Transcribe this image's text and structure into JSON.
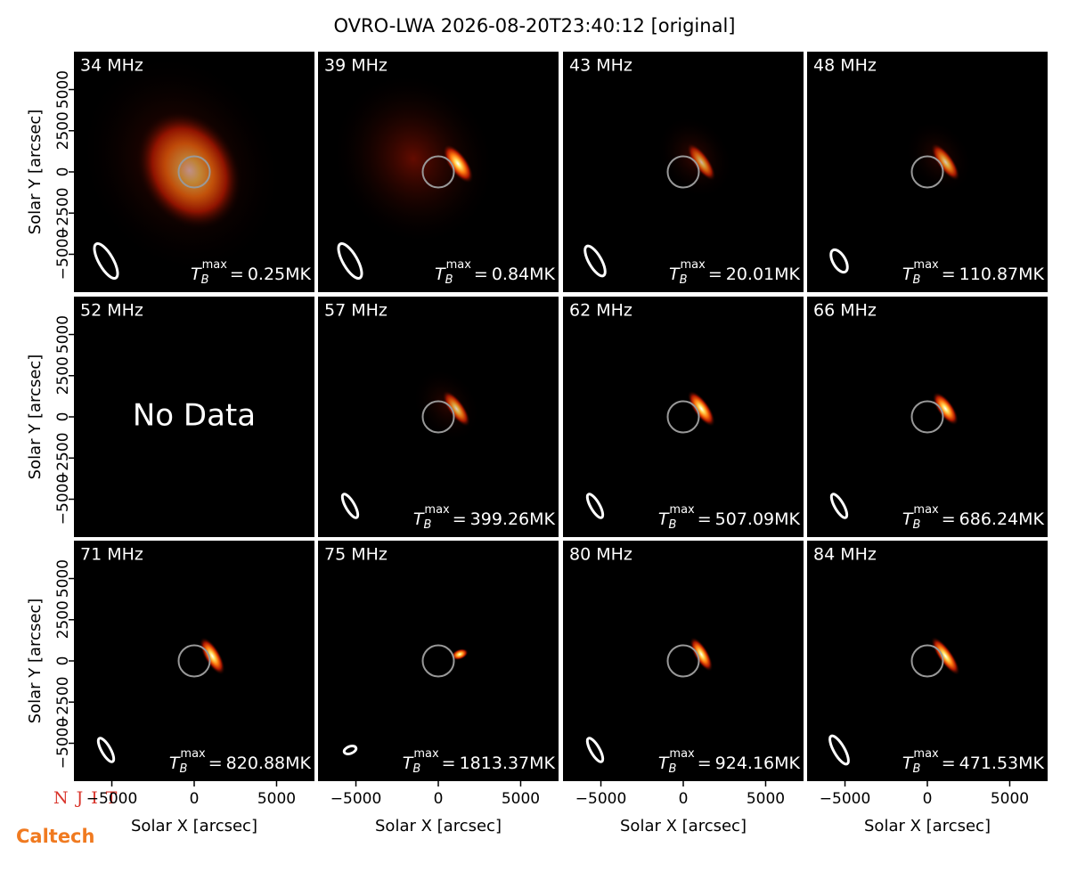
{
  "chart_data": {
    "type": "image",
    "title": "OVRO-LWA 2026-08-20T23:40:12 [original]",
    "xlabel": "Solar X [arcsec]",
    "ylabel": "Solar Y [arcsec]",
    "xlim": [
      -7300,
      7300
    ],
    "ylim": [
      -7300,
      7300
    ],
    "xticks": [
      {
        "value": -5000,
        "label": "−5000"
      },
      0,
      5000
    ],
    "yticks": [
      {
        "value": -5000,
        "label": "−5000"
      },
      {
        "value": -2500,
        "label": "−2500"
      },
      0,
      2500,
      5000
    ],
    "tb_symbol": "T",
    "tb_sub": "B",
    "tb_sup": "max",
    "equals": "=",
    "no_data": "No Data",
    "panels": [
      {
        "frequency": "34 MHz",
        "tb_max": "0.25MK"
      },
      {
        "frequency": "39 MHz",
        "tb_max": "0.84MK"
      },
      {
        "frequency": "43 MHz",
        "tb_max": "20.01MK"
      },
      {
        "frequency": "48 MHz",
        "tb_max": "110.87MK"
      },
      {
        "frequency": "52 MHz",
        "tb_max": null
      },
      {
        "frequency": "57 MHz",
        "tb_max": "399.26MK"
      },
      {
        "frequency": "62 MHz",
        "tb_max": "507.09MK"
      },
      {
        "frequency": "66 MHz",
        "tb_max": "686.24MK"
      },
      {
        "frequency": "71 MHz",
        "tb_max": "820.88MK"
      },
      {
        "frequency": "75 MHz",
        "tb_max": "1813.37MK"
      },
      {
        "frequency": "80 MHz",
        "tb_max": "924.16MK"
      },
      {
        "frequency": "84 MHz",
        "tb_max": "471.53MK"
      }
    ],
    "logos": [
      "NJIT",
      "Caltech"
    ]
  }
}
